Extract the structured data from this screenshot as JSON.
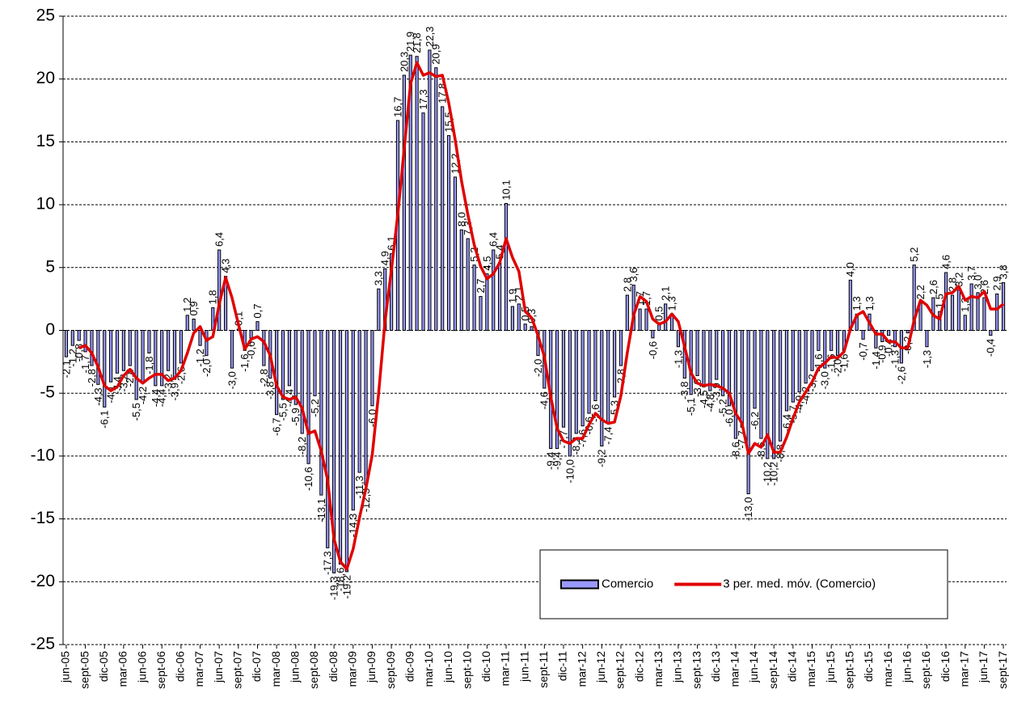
{
  "chart_data": {
    "type": "bar",
    "categories": [
      "jun-05",
      null,
      null,
      "sept-05",
      null,
      null,
      "dic-05",
      null,
      null,
      "mar-06",
      null,
      null,
      "jun-06",
      null,
      null,
      "sept-06",
      null,
      null,
      "dic-06",
      null,
      null,
      "mar-07",
      null,
      null,
      "jun-07",
      null,
      null,
      "sept-07",
      null,
      null,
      "dic-07",
      null,
      null,
      "mar-08",
      null,
      null,
      "jun-08",
      null,
      null,
      "sept-08",
      null,
      null,
      "dic-08",
      null,
      null,
      "mar-09",
      null,
      null,
      "jun-09",
      null,
      null,
      "sept-09",
      null,
      null,
      "dic-09",
      null,
      null,
      "mar-10",
      null,
      null,
      "jun-10",
      null,
      null,
      "sept-10",
      null,
      null,
      "dic-10",
      null,
      null,
      "mar-11",
      null,
      null,
      "jun-11",
      null,
      null,
      "sept-11",
      null,
      null,
      "dic-11",
      null,
      null,
      "mar-12",
      null,
      null,
      "jun-12",
      null,
      null,
      "sept-12",
      null,
      null,
      "dic-12",
      null,
      null,
      "mar-13",
      null,
      null,
      "jun-13",
      null,
      null,
      "sept-13",
      null,
      null,
      "dic-13",
      null,
      null,
      "mar-14",
      null,
      null,
      "jun-14",
      null,
      null,
      "sept-14",
      null,
      null,
      "dic-14",
      null,
      null,
      "mar-15",
      null,
      null,
      "jun-15",
      null,
      null,
      "sept-15",
      null,
      null,
      "dic-15",
      null,
      null,
      "mar-16",
      null,
      null,
      "jun-16",
      null,
      null,
      "sept-16",
      null,
      null,
      "dic-16",
      null,
      null,
      "mar-17",
      null,
      null,
      "jun-17",
      null,
      null,
      "sept-17"
    ],
    "series": [
      {
        "name": "Comercio",
        "type": "bar",
        "color": "#9999ff",
        "values": [
          -2.1,
          -1.2,
          -0.8,
          -1.7,
          -2.8,
          -4.3,
          -6.1,
          -4.1,
          -3.4,
          -3.2,
          -2.8,
          -5.5,
          -4.2,
          -1.8,
          -4.4,
          -4.4,
          -3.2,
          -3.9,
          -2.6,
          1.2,
          0.9,
          -1.2,
          -2.0,
          1.8,
          6.4,
          4.3,
          -3.0,
          0.1,
          -1.6,
          -0.6,
          0.7,
          -2.8,
          -3.8,
          -6.7,
          -5.5,
          -4.4,
          -5.9,
          -8.2,
          -10.6,
          -5.2,
          -13.1,
          -17.3,
          -19.3,
          -18.6,
          -19.2,
          -14.3,
          -11.3,
          -12.3,
          -6.0,
          3.3,
          4.9,
          6.1,
          16.7,
          20.3,
          21.9,
          21.8,
          17.3,
          22.3,
          20.9,
          17.8,
          15.5,
          12.2,
          8.0,
          7.3,
          5.2,
          2.7,
          4.5,
          6.4,
          5.4,
          10.1,
          1.9,
          2.1,
          0.5,
          0.3,
          -2.0,
          -4.6,
          -9.4,
          -9.4,
          -7.7,
          -10.0,
          -8.2,
          -7.6,
          -6.6,
          -5.6,
          -9.2,
          -7.4,
          -5.3,
          -2.8,
          2.8,
          3.6,
          1.7,
          1.7,
          -0.6,
          0.5,
          2.1,
          1.3,
          -1.3,
          -3.8,
          -5.1,
          -3.6,
          -4.5,
          -4.8,
          -3.9,
          -5.2,
          -6.0,
          -8.6,
          -7.7,
          -13.0,
          -6.2,
          -8.6,
          -10.2,
          -10.2,
          -8.8,
          -6.4,
          -5.7,
          -4.9,
          -4.2,
          -3.2,
          -1.6,
          -3.0,
          -1.6,
          -2.0,
          -1.6,
          4.0,
          1.3,
          -0.7,
          1.3,
          -1.4,
          -0.9,
          -0.4,
          -1.3,
          -2.6,
          -0.2,
          5.2,
          2.2,
          -1.3,
          2.6,
          1.5,
          4.6,
          2.8,
          3.2,
          1.2,
          3.7,
          3.0,
          2.6,
          -0.4,
          2.9,
          3.8
        ],
        "value_labels": [
          "-2,1",
          "-1,2",
          "-0,8",
          "-1,7",
          "-2,8",
          "-4,3",
          "-6,1",
          "-4,1",
          "-3,4",
          "-3,2",
          "-2,8",
          "-5,5",
          "-4,2",
          "-1,8",
          "-4,4",
          "-4,4",
          "-3,2",
          "-3,9",
          "-2,6",
          "1,2",
          "0,9",
          "-1,2",
          "-2,0",
          "1,8",
          "6,4",
          "4,3",
          "-3,0",
          "0,1",
          "-1,6",
          "-0,6",
          "0,7",
          "-2,8",
          "-3,8",
          "-6,7",
          "-5,5",
          "-4,4",
          "-5,9",
          "-8,2",
          "-10,6",
          "-5,2",
          "-13,1",
          "-17,3",
          "-19,3",
          "-18,6",
          "-19,2",
          "-14,3",
          "-11,3",
          "-12,3",
          "-6,0",
          "3,3",
          "4,9",
          "6,1",
          "16,7",
          "20,3",
          "21,9",
          "21,8",
          "17,3",
          "22,3",
          "20,9",
          "17,8",
          "15,5",
          "12,2",
          "8,0",
          "7,3",
          "5,2",
          "2,7",
          "4,5",
          "6,4",
          "5,4",
          "10,1",
          "1,9",
          "2,1",
          "0,5",
          "0,3",
          "-2,0",
          "-4,6",
          "-9,4",
          "-9,4",
          "-7,7",
          "-10,0",
          "-8,2",
          "-7,6",
          "-6,6",
          "-5,6",
          "-9,2",
          "-7,4",
          "-5,3",
          "-2,8",
          "2,8",
          "3,6",
          "1,7",
          "1,7",
          "-0,6",
          "0,5",
          "2,1",
          "1,3",
          "-1,3",
          "-3,8",
          "-5,1",
          "-3,6",
          "-4,5",
          "-4,8",
          "-3,9",
          "-5,2",
          "-6,0",
          "-8,6",
          "-7,7",
          "-13,0",
          "-6,2",
          "-8,6",
          "-10,2",
          "-10,2",
          "-8,8",
          "-6,4",
          "-5,7",
          "-4,9",
          "-4,2",
          "-3,2",
          "-1,6",
          "-3,0",
          "-1,6",
          "-2,0",
          "-1,6",
          "4,0",
          "1,3",
          "-0,7",
          "1,3",
          "-1,4",
          "-0,9",
          "-0,4",
          "-1,3",
          "-2,6",
          "-0,2",
          "5,2",
          "2,2",
          "-1,3",
          "2,6",
          "1,5",
          "4,6",
          "2,8",
          "3,2",
          "1,2",
          "3,7",
          "3,0",
          "2,6",
          "-0,4",
          "2,9",
          "3,8"
        ]
      },
      {
        "name": "3 per. med. móv. (Comercio)",
        "type": "line",
        "color": "#e00000",
        "values": [
          null,
          null,
          -1.4,
          -1.2,
          -1.8,
          -2.9,
          -4.4,
          -4.8,
          -4.5,
          -3.6,
          -3.1,
          -3.8,
          -4.2,
          -3.8,
          -3.5,
          -3.5,
          -4.0,
          -3.8,
          -3.2,
          -1.8,
          -0.2,
          0.3,
          -0.8,
          -0.5,
          2.1,
          4.2,
          2.6,
          0.5,
          -1.5,
          -0.7,
          -0.5,
          -0.9,
          -2.0,
          -4.4,
          -5.3,
          -5.5,
          -5.3,
          -6.2,
          -8.2,
          -8.0,
          -9.6,
          -11.9,
          -16.6,
          -18.4,
          -19.0,
          -17.4,
          -14.9,
          -12.6,
          -9.9,
          -5.0,
          0.7,
          4.8,
          9.2,
          14.4,
          19.6,
          21.3,
          20.3,
          20.5,
          20.2,
          20.3,
          18.1,
          15.2,
          11.9,
          9.2,
          6.8,
          5.1,
          4.1,
          4.5,
          5.4,
          7.3,
          5.8,
          4.7,
          1.5,
          1.0,
          -0.4,
          -2.1,
          -5.3,
          -7.8,
          -8.8,
          -9.0,
          -8.6,
          -8.6,
          -7.5,
          -6.6,
          -7.1,
          -7.4,
          -7.3,
          -5.2,
          -1.8,
          1.2,
          2.7,
          2.3,
          0.9,
          0.5,
          0.7,
          1.3,
          0.7,
          -1.3,
          -3.4,
          -4.2,
          -4.4,
          -4.3,
          -4.4,
          -4.6,
          -5.0,
          -6.6,
          -7.4,
          -9.8,
          -9.0,
          -9.3,
          -8.3,
          -9.7,
          -9.7,
          -8.5,
          -7.0,
          -5.7,
          -4.9,
          -4.1,
          -3.0,
          -2.6,
          -2.1,
          -2.2,
          -1.7,
          0.1,
          1.2,
          1.5,
          0.6,
          -0.3,
          -0.3,
          -0.9,
          -0.9,
          -1.4,
          -1.4,
          0.8,
          2.4,
          2.0,
          1.2,
          0.9,
          2.9,
          3.0,
          3.5,
          2.4,
          2.7,
          2.6,
          3.1,
          1.7,
          1.7,
          2.1
        ]
      }
    ],
    "ylim": [
      -25,
      25
    ],
    "yticks": [
      -25,
      -20,
      -15,
      -10,
      -5,
      0,
      5,
      10,
      15,
      20,
      25
    ],
    "grid": true,
    "legend_position": "lower right"
  }
}
